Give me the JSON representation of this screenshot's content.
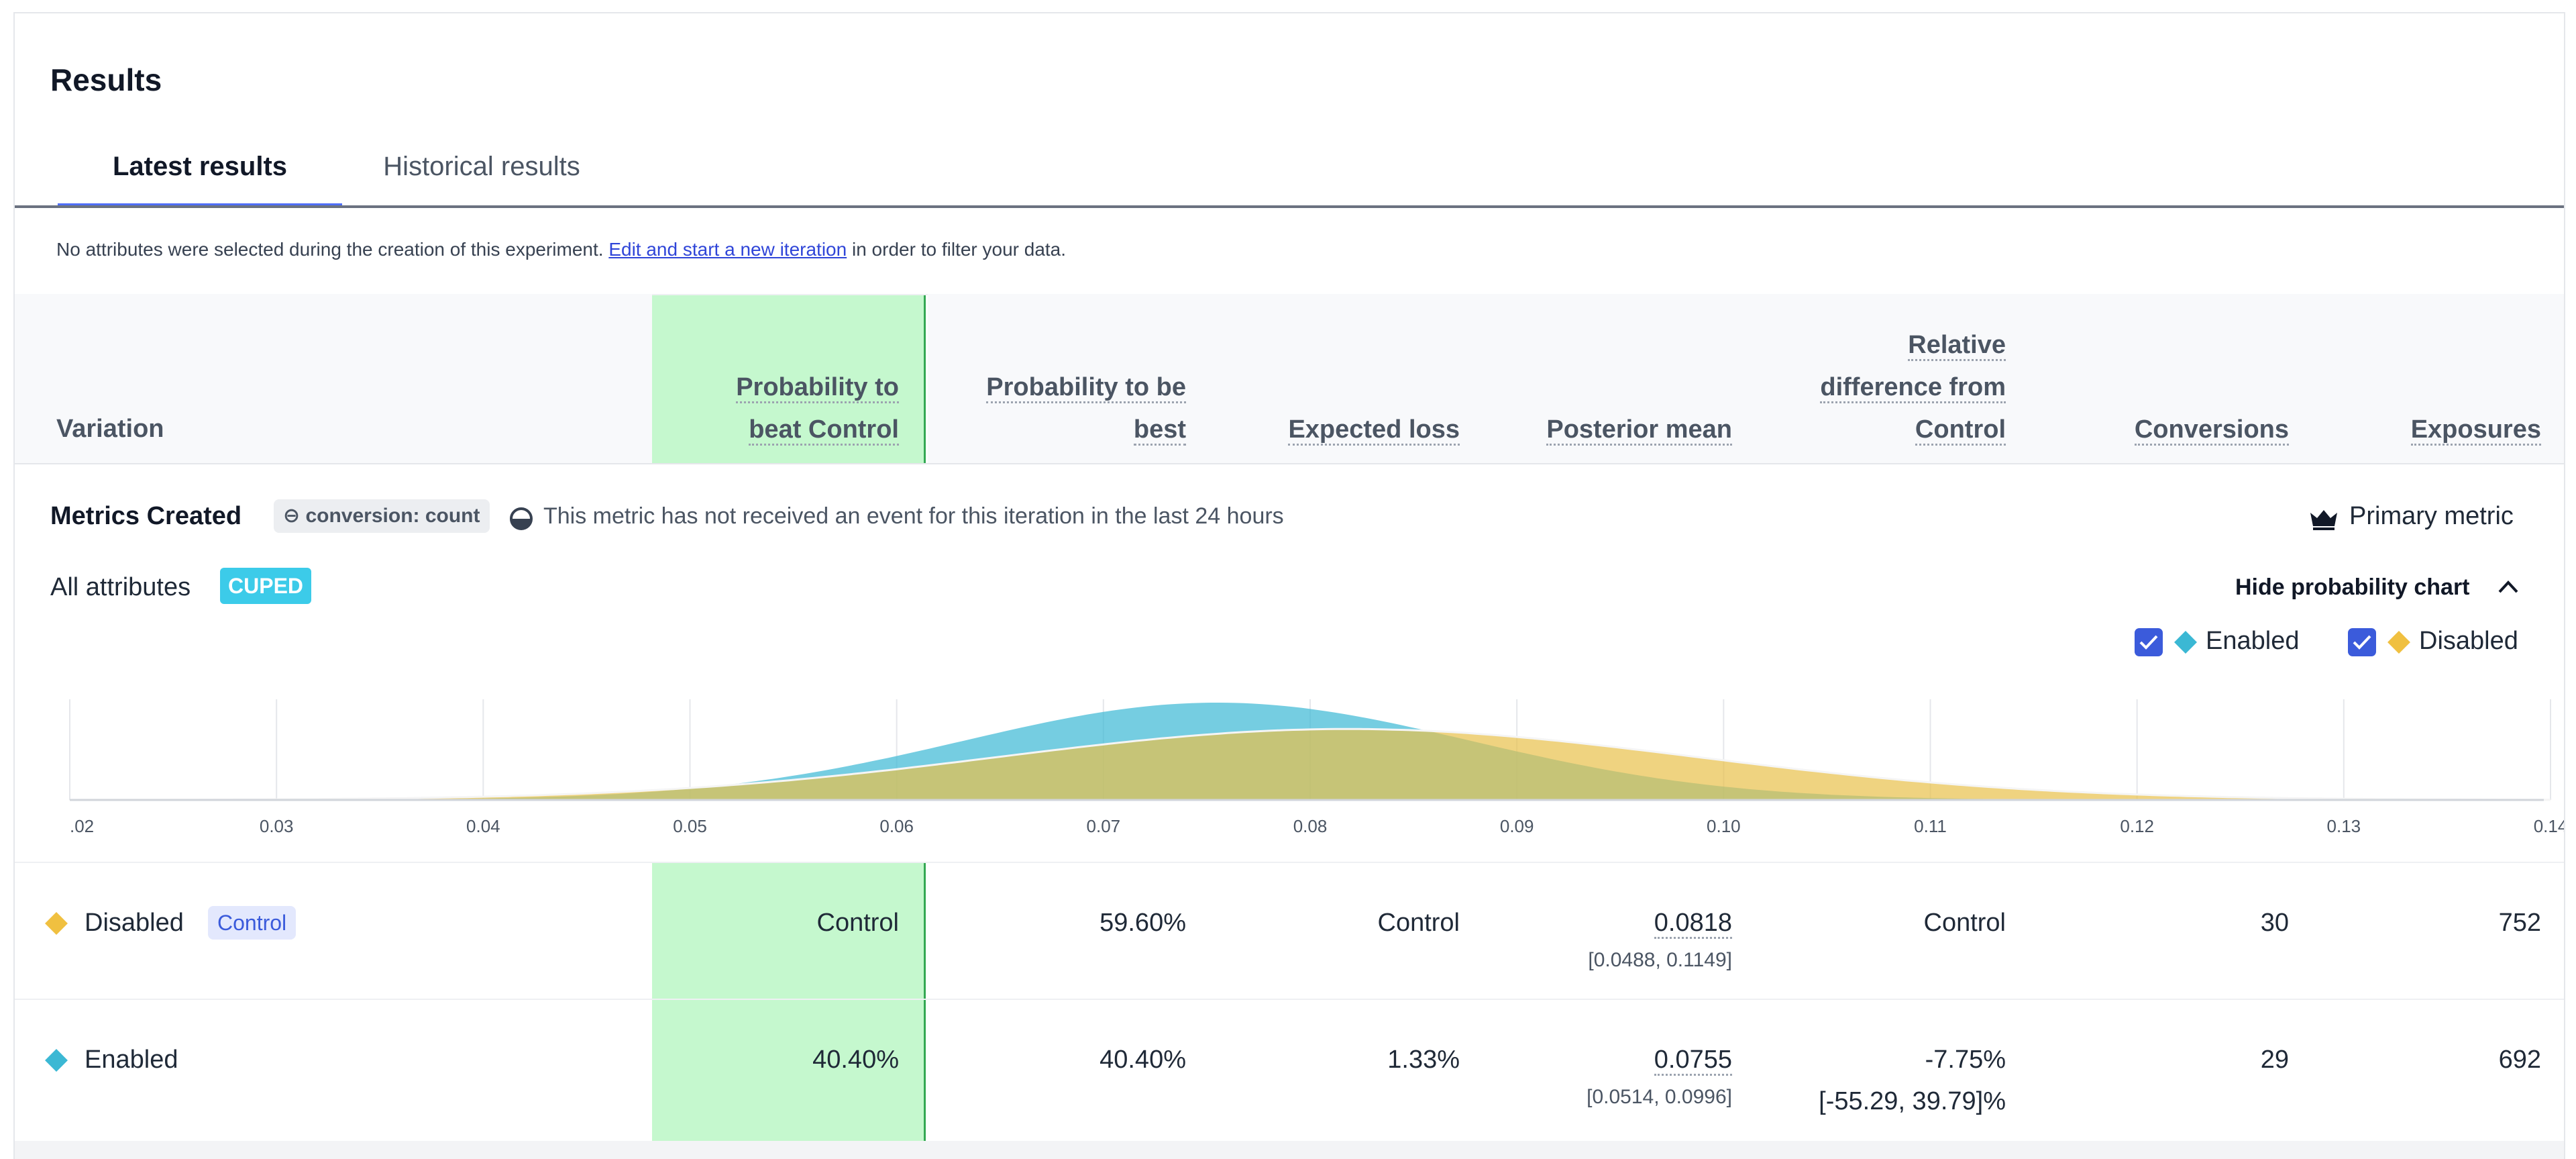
{
  "title": "Results",
  "tabs": [
    {
      "label": "Latest results",
      "active": true
    },
    {
      "label": "Historical results",
      "active": false
    }
  ],
  "notice": {
    "before": "No attributes were selected during the creation of this experiment. ",
    "link": "Edit and start a new iteration",
    "after": " in order to filter your data."
  },
  "columns": {
    "variation": "Variation",
    "prob_beat_l1": "Probability to",
    "prob_beat_l2": "beat Control",
    "prob_best_l1": "Probability to be",
    "prob_best_l2": "best",
    "expected_loss": "Expected loss",
    "posterior_mean": "Posterior mean",
    "rel_diff_l1": "Relative",
    "rel_diff_l2": "difference from",
    "rel_diff_l3": "Control",
    "conversions": "Conversions",
    "exposures": "Exposures"
  },
  "metric": {
    "name": "Metrics Created",
    "badge": "⊖ conversion: count",
    "note": "This metric has not received an event for this iteration in the last 24 hours",
    "primary": "Primary metric",
    "icons": [
      "half-circle-icon",
      "crown-icon"
    ]
  },
  "attributes": {
    "label": "All attributes",
    "badge": "CUPED"
  },
  "chart_toggle": "Hide probability chart",
  "legend": [
    {
      "label": "Enabled",
      "color": "#3bb8d4",
      "checked": true
    },
    {
      "label": "Disabled",
      "color": "#f0c040",
      "checked": true
    }
  ],
  "chart_data": {
    "type": "area",
    "x_ticks": [
      ".02",
      "0.03",
      "0.04",
      "0.05",
      "0.06",
      "0.07",
      "0.08",
      "0.09",
      "0.10",
      "0.11",
      "0.12",
      "0.13",
      "0.14"
    ],
    "xlim": [
      0.02,
      0.14
    ],
    "series": [
      {
        "name": "Enabled",
        "color": "#3bb8d4",
        "mean": 0.0755,
        "interval": [
          0.0514,
          0.0996
        ]
      },
      {
        "name": "Disabled",
        "color": "#f0c040",
        "mean": 0.0818,
        "interval": [
          0.0488,
          0.1149
        ]
      }
    ],
    "grid": true
  },
  "rows": [
    {
      "name": "Disabled",
      "badge": "Control",
      "color": "#f0c040",
      "prob_beat": "Control",
      "prob_best": "59.60%",
      "expected_loss": "Control",
      "posterior_mean": "0.0818",
      "posterior_ci": "[0.0488, 0.1149]",
      "rel_diff": "Control",
      "rel_diff_ci": "",
      "conversions": "30",
      "exposures": "752"
    },
    {
      "name": "Enabled",
      "badge": "",
      "color": "#3bb8d4",
      "prob_beat": "40.40%",
      "prob_best": "40.40%",
      "expected_loss": "1.33%",
      "posterior_mean": "0.0755",
      "posterior_ci": "[0.0514, 0.0996]",
      "rel_diff": "-7.75%",
      "rel_diff_ci": "[-55.29, 39.79]%",
      "conversions": "29",
      "exposures": "692"
    }
  ]
}
